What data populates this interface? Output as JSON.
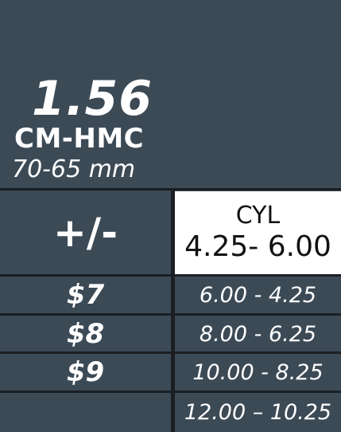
{
  "header": {
    "index": "1.56",
    "coating": "CM-HMC",
    "diameter": "70-65 mm"
  },
  "table": {
    "sign_header": "+/-",
    "cyl_header": "CYL",
    "cyl_header_range": "4.25- 6.00",
    "rows": [
      {
        "price": "$7",
        "range": "6.00 - 4.25"
      },
      {
        "price": "$8",
        "range": "8.00 - 6.25"
      },
      {
        "price": "$9",
        "range": "10.00 - 8.25"
      },
      {
        "price": "",
        "range": "12.00 – 10.25"
      }
    ]
  },
  "colors": {
    "background": "#3c4a56",
    "grid_lines": "#1b1f23",
    "highlight_cell": "#ffffff",
    "text_light": "#ffffff",
    "text_dark": "#111111"
  }
}
